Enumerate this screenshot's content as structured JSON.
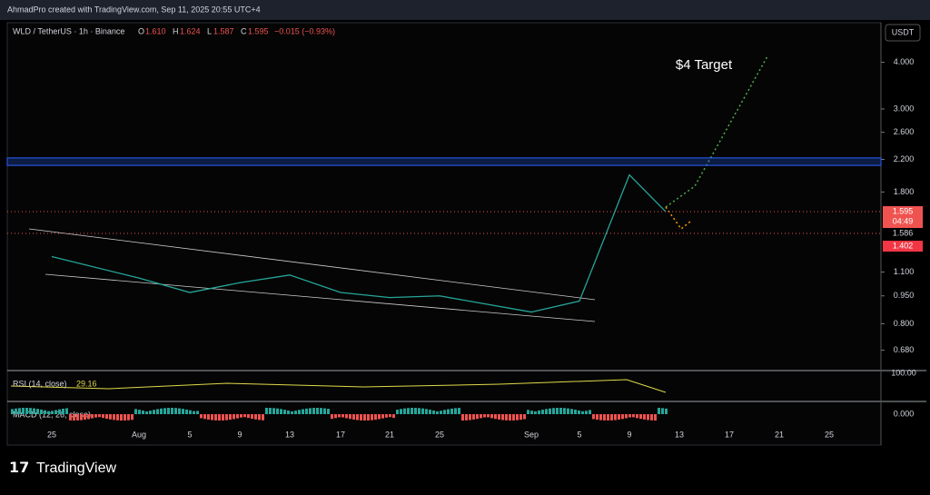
{
  "header": {
    "caption": "AhmadPro created with TradingView.com, Sep 11, 2025 20:55 UTC+4"
  },
  "legend": {
    "symbol": "WLD / TetherUS · 1h · Binance",
    "o_label": "O",
    "open": "1.610",
    "h_label": "H",
    "high": "1.624",
    "l_label": "L",
    "low": "1.587",
    "c_label": "C",
    "close": "1.595",
    "change": "−0.015 (−0.93%)"
  },
  "currency": "USDT",
  "annotation": "$4 Target",
  "price_axis": {
    "log": true,
    "ylim": [
      0.6,
      5.1
    ],
    "ticks": [
      {
        "value": 4,
        "label": "4.000"
      },
      {
        "value": 3,
        "label": "3.000"
      },
      {
        "value": 2.6,
        "label": "2.600"
      },
      {
        "value": 2.2,
        "label": "2.200"
      },
      {
        "value": 1.8,
        "label": "1.800"
      },
      {
        "value": 1.1,
        "label": "1.100"
      },
      {
        "value": 0.95,
        "label": "0.950"
      },
      {
        "value": 0.8,
        "label": "0.800"
      },
      {
        "value": 0.68,
        "label": "0.680"
      }
    ]
  },
  "last_price": 1.595,
  "price_tags": {
    "countdown": "04:49",
    "level": "1.586",
    "low_level": "1.402"
  },
  "zone": {
    "low": 2.12,
    "high": 2.22
  },
  "time_axis": [
    "25",
    "Aug",
    "5",
    "9",
    "13",
    "17",
    "21",
    "25",
    "Sep",
    "5",
    "9",
    "13",
    "17",
    "21",
    "25"
  ],
  "price_path": {
    "color": "#26a69a",
    "values": [
      1.21,
      1.06,
      0.97,
      1.03,
      1.08,
      0.97,
      0.94,
      0.95,
      0.86,
      0.92,
      2.0
    ]
  },
  "rsi": {
    "label": "RSI (14, close)",
    "value": "29.16",
    "level": "100.00"
  },
  "macd": {
    "label": "MACD (12, 26, close)",
    "level": "0.000"
  },
  "brand": "TradingView"
}
